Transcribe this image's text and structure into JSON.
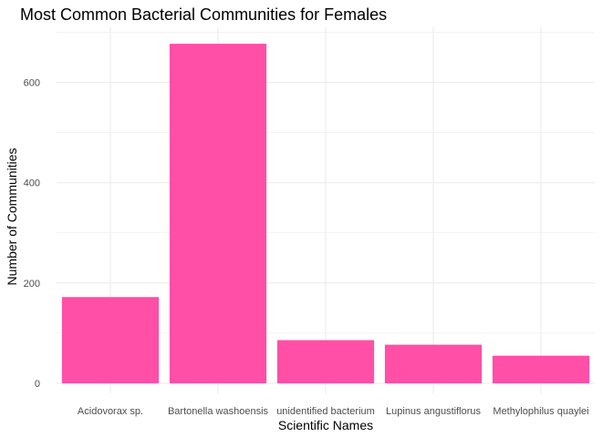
{
  "chart_data": {
    "type": "bar",
    "title": "Most Common Bacterial Communities for Females",
    "xlabel": "Scientific Names",
    "ylabel": "Number of Communities",
    "categories": [
      "Acidovorax sp.",
      "Bartonella washoensis",
      "unidentified bacterium",
      "Lupinus angustiflorus",
      "Methylophilus quaylei"
    ],
    "values": [
      172,
      677,
      86,
      77,
      55
    ],
    "yticks": [
      0,
      200,
      400,
      600
    ],
    "ylim": [
      0,
      710
    ],
    "grid": true,
    "bar_color": "#FF4FA7",
    "grid_color": "#EBEBEB"
  }
}
